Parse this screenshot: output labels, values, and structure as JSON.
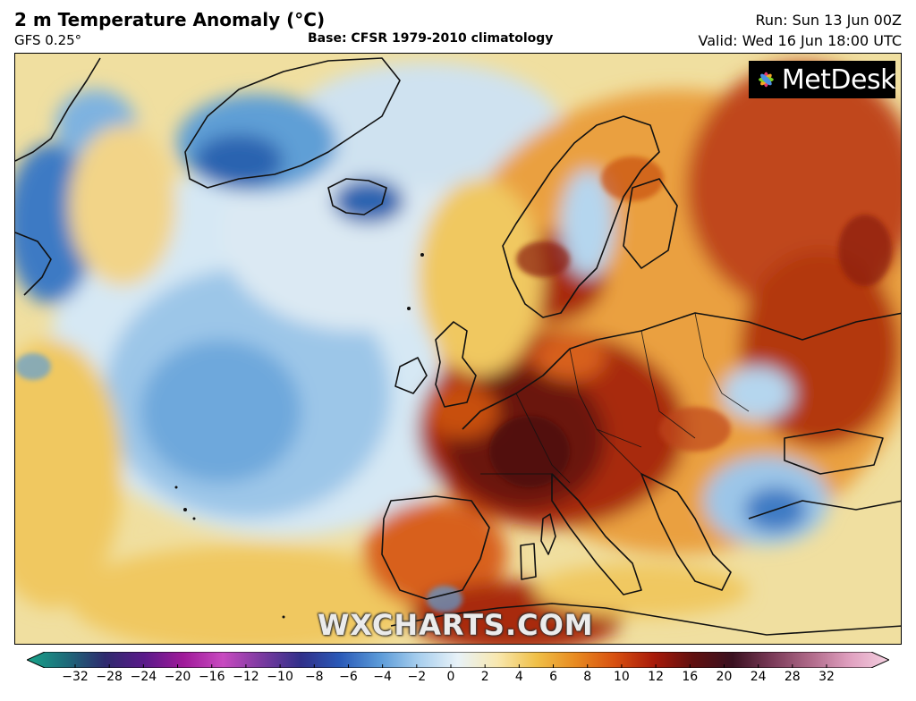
{
  "header": {
    "title": "2 m Temperature Anomaly (°C)",
    "model": "GFS 0.25°",
    "base": "Base: CFSR 1979-2010 climatology",
    "run": "Run: Sun 13 Jun 00Z",
    "valid": "Valid: Wed 16 Jun 18:00 UTC"
  },
  "branding": {
    "logo_text": "MetDesk",
    "watermark": "WXCHARTS.COM"
  },
  "colorbar": {
    "tick_labels": [
      "−32",
      "−28",
      "−24",
      "−20",
      "−16",
      "−12",
      "−10",
      "−8",
      "−6",
      "−4",
      "−2",
      "0",
      "2",
      "4",
      "6",
      "8",
      "10",
      "12",
      "16",
      "20",
      "24",
      "28",
      "32"
    ],
    "colors": [
      "#18a58a",
      "#1d6b7a",
      "#2e2a6e",
      "#5a1a8a",
      "#a01a9a",
      "#c84ac0",
      "#7a3aa0",
      "#30308a",
      "#2a5ab8",
      "#5a9ad8",
      "#a8cfee",
      "#e8f2f8",
      "#f8e8b0",
      "#f0c048",
      "#e88a20",
      "#d85010",
      "#a81a0a",
      "#601010",
      "#3a1020",
      "#7a3a58",
      "#b06a8a",
      "#e0a0c0",
      "#f4d0e0"
    ]
  },
  "map": {
    "region": "North Atlantic and Europe",
    "variable": "2 m temperature anomaly",
    "colors": {
      "warm_strong": "#5a0f0f",
      "warm": "#c0461a",
      "warm_mild": "#eaa040",
      "neutral_warm": "#f3d27a",
      "neutral": "#eef3f6",
      "cool_mild": "#b5d6ee",
      "cool": "#5f9fd6",
      "cool_strong": "#2c64b0",
      "coast": "#111111"
    }
  }
}
